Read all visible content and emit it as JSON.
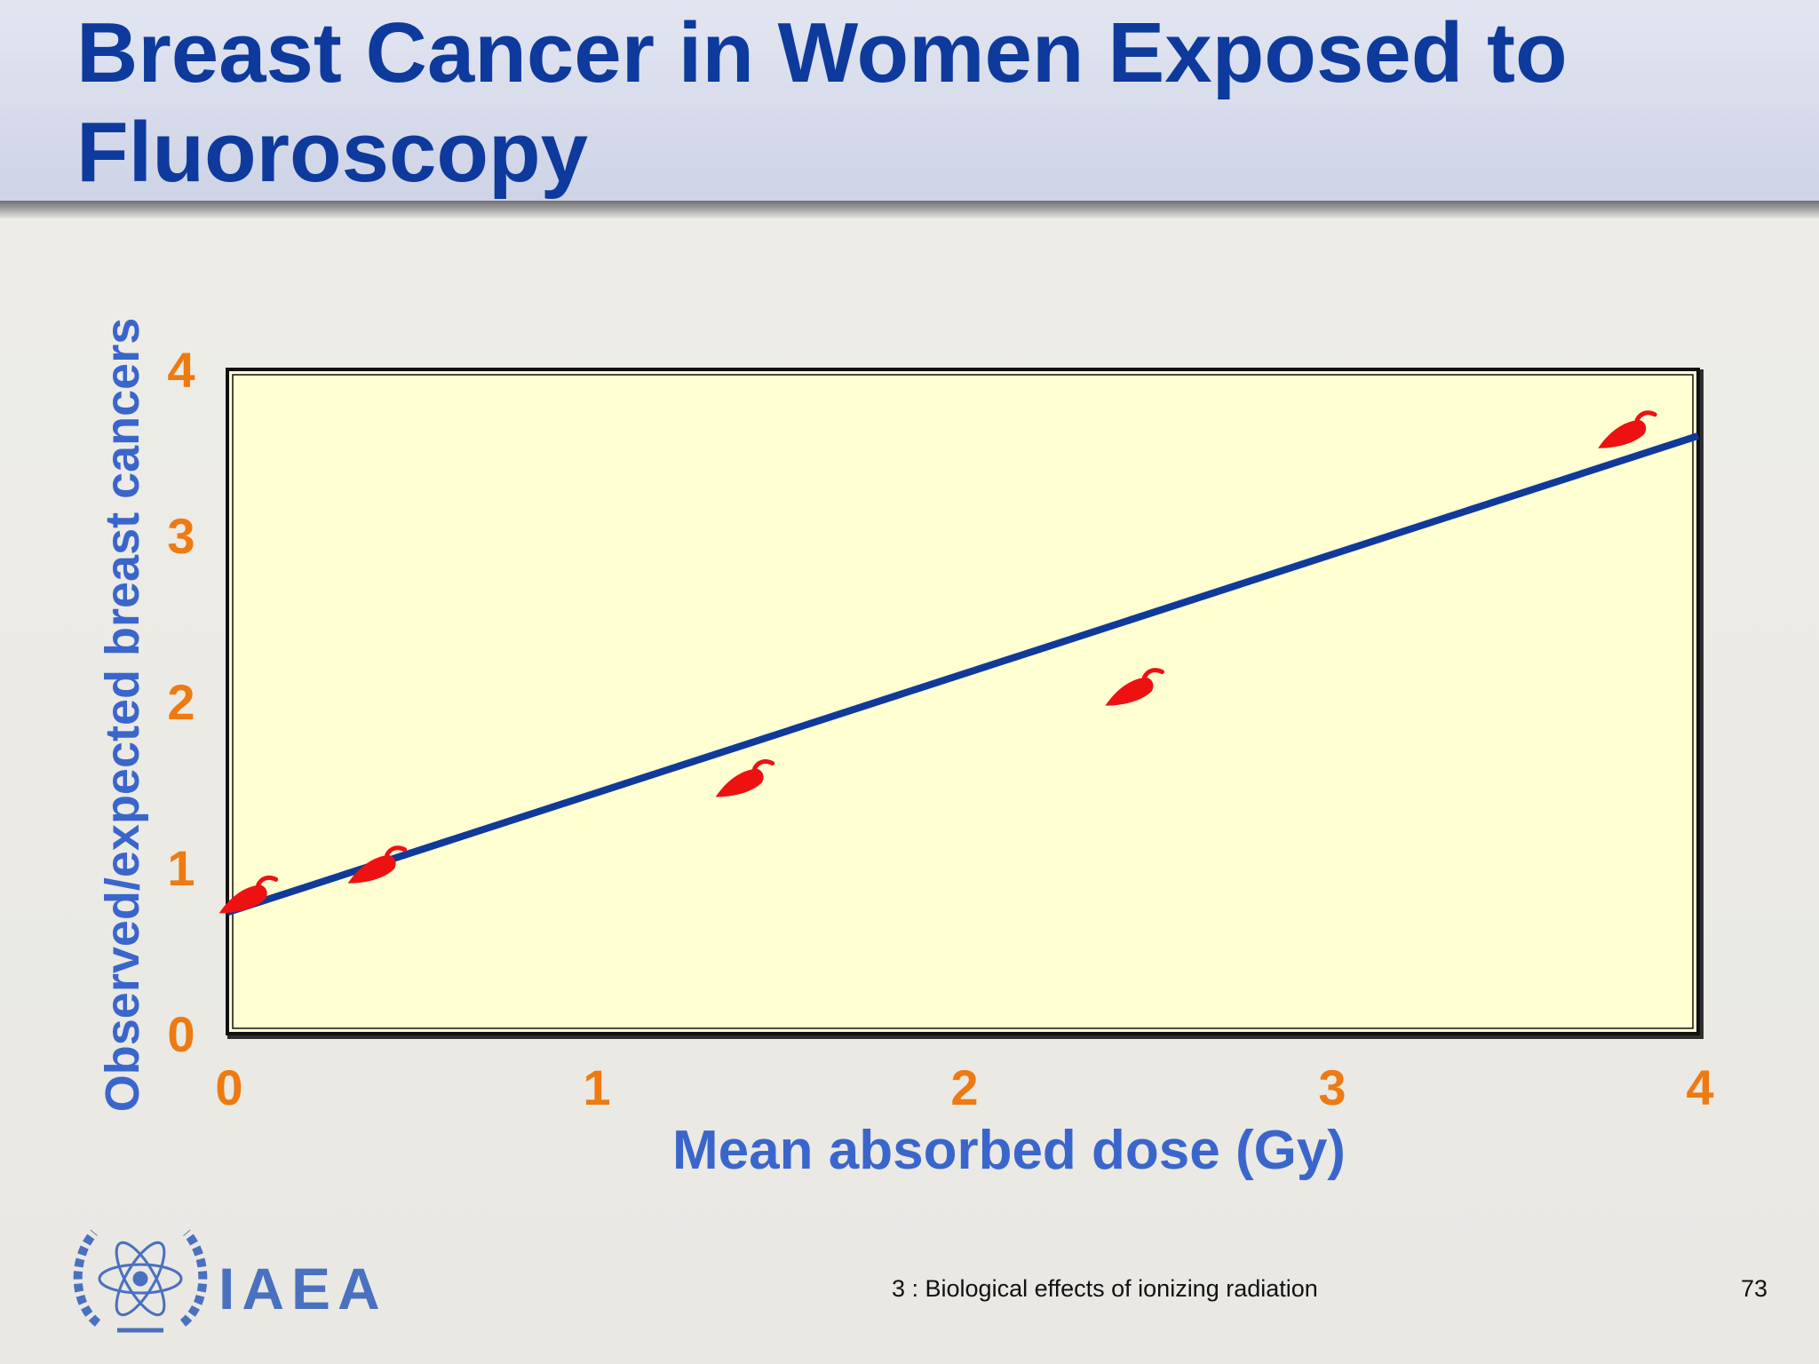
{
  "slide": {
    "title": "Breast Cancer in Women Exposed to Fluoroscopy"
  },
  "chart_data": {
    "type": "scatter",
    "title": "",
    "xlabel": "Mean absorbed dose (Gy)",
    "ylabel": "Observed/expected breast cancers",
    "xlim": [
      0,
      4
    ],
    "ylim": [
      0,
      4
    ],
    "x_ticks": [
      "0",
      "1",
      "2",
      "3",
      "4"
    ],
    "y_ticks": [
      "0",
      "1",
      "2",
      "3",
      "4"
    ],
    "grid": false,
    "legend": "none",
    "points": [
      {
        "x": 0.05,
        "y": 0.8
      },
      {
        "x": 0.4,
        "y": 0.98
      },
      {
        "x": 1.4,
        "y": 1.5
      },
      {
        "x": 2.46,
        "y": 2.05
      },
      {
        "x": 3.8,
        "y": 3.6
      }
    ],
    "fit_line": {
      "x": [
        0,
        4
      ],
      "y": [
        0.73,
        3.6
      ]
    },
    "colors": {
      "plot_background": "#ffffd2",
      "fit_line": "#103a99",
      "points": "#ee1111",
      "tick_labels": "#ee7a11",
      "axis_titles": "#3a66cc"
    },
    "marker": "chili-pepper-icon"
  },
  "footer": {
    "logo_text": "IAEA",
    "caption": "3 : Biological effects of ionizing radiation",
    "page_number": "73"
  }
}
